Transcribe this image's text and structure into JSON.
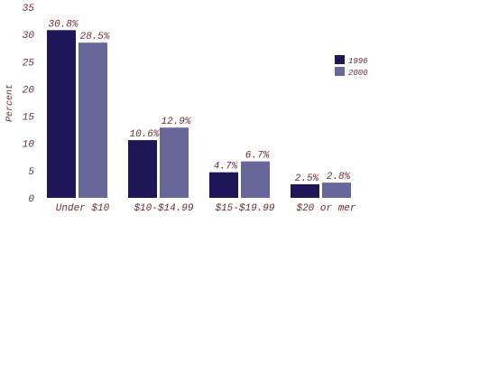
{
  "chart_data": {
    "type": "bar",
    "title": "",
    "xlabel": "",
    "ylabel": "Percent",
    "ylim": [
      0,
      35
    ],
    "yticks": [
      0,
      5,
      10,
      15,
      20,
      25,
      30,
      35
    ],
    "grid": false,
    "legend_position": "top-right",
    "categories": [
      "Under $10",
      "$10-$14.99",
      "$15-$19.99",
      "$20 or mer"
    ],
    "series": [
      {
        "name": "1996",
        "color": "#1e1656",
        "values": [
          30.8,
          10.6,
          4.7,
          2.5
        ],
        "labels": [
          "30.8%",
          "10.6%",
          "4.7%",
          "2.5%"
        ]
      },
      {
        "name": "2000",
        "color": "#67679a",
        "values": [
          28.5,
          12.9,
          6.7,
          2.8
        ],
        "labels": [
          "28.5%",
          "12.9%",
          "6.7%",
          "2.8%"
        ]
      }
    ]
  }
}
